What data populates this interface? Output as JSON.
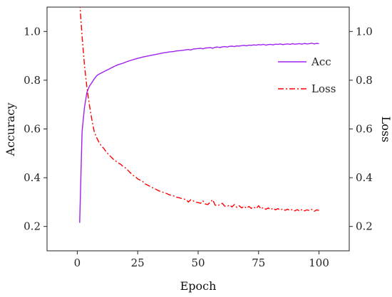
{
  "chart_data": {
    "type": "line",
    "xlabel": "Epoch",
    "ylabel_left": "Accuracy",
    "ylabel_right": "Loss",
    "xlim": [
      -12.5,
      112.5
    ],
    "ylim_left": [
      0.1,
      1.1
    ],
    "ylim_right": [
      0.1,
      1.1
    ],
    "xticks": [
      0,
      25,
      50,
      75,
      100
    ],
    "yticks_left": [
      0.2,
      0.4,
      0.6,
      0.8,
      1.0
    ],
    "yticks_right": [
      0.2,
      0.4,
      0.6,
      0.8,
      1.0
    ],
    "grid": false,
    "legend_position": "top-right",
    "series": [
      {
        "name": "Acc",
        "axis": "left",
        "color": "#a020f0",
        "style": "solid",
        "x": [
          1,
          2,
          3,
          4,
          5,
          6,
          7,
          8,
          9,
          10,
          11,
          12,
          13,
          14,
          15,
          16,
          17,
          18,
          19,
          20,
          21,
          22,
          23,
          24,
          25,
          26,
          27,
          28,
          29,
          30,
          31,
          32,
          33,
          34,
          35,
          36,
          37,
          38,
          39,
          40,
          41,
          42,
          43,
          44,
          45,
          46,
          47,
          48,
          49,
          50,
          51,
          52,
          53,
          54,
          55,
          56,
          57,
          58,
          59,
          60,
          61,
          62,
          63,
          64,
          65,
          66,
          67,
          68,
          69,
          70,
          71,
          72,
          73,
          74,
          75,
          76,
          77,
          78,
          79,
          80,
          81,
          82,
          83,
          84,
          85,
          86,
          87,
          88,
          89,
          90,
          91,
          92,
          93,
          94,
          95,
          96,
          97,
          98,
          99,
          100
        ],
        "y": [
          0.215,
          0.59,
          0.69,
          0.75,
          0.775,
          0.79,
          0.805,
          0.818,
          0.825,
          0.83,
          0.835,
          0.84,
          0.845,
          0.85,
          0.855,
          0.86,
          0.864,
          0.867,
          0.87,
          0.874,
          0.878,
          0.881,
          0.884,
          0.887,
          0.89,
          0.892,
          0.895,
          0.897,
          0.899,
          0.901,
          0.903,
          0.905,
          0.907,
          0.909,
          0.911,
          0.913,
          0.914,
          0.916,
          0.917,
          0.918,
          0.92,
          0.921,
          0.922,
          0.923,
          0.925,
          0.926,
          0.924,
          0.928,
          0.929,
          0.93,
          0.931,
          0.929,
          0.932,
          0.933,
          0.934,
          0.931,
          0.935,
          0.936,
          0.934,
          0.937,
          0.938,
          0.936,
          0.939,
          0.94,
          0.938,
          0.941,
          0.94,
          0.942,
          0.943,
          0.941,
          0.944,
          0.943,
          0.945,
          0.944,
          0.946,
          0.945,
          0.947,
          0.944,
          0.946,
          0.947,
          0.945,
          0.948,
          0.947,
          0.949,
          0.946,
          0.948,
          0.949,
          0.947,
          0.95,
          0.948,
          0.949,
          0.95,
          0.948,
          0.951,
          0.949,
          0.95,
          0.952,
          0.949,
          0.951,
          0.95
        ]
      },
      {
        "name": "Loss",
        "axis": "right",
        "color": "#ff0000",
        "style": "dashdot",
        "x": [
          1,
          2,
          3,
          4,
          5,
          6,
          7,
          8,
          9,
          10,
          11,
          12,
          13,
          14,
          15,
          16,
          17,
          18,
          19,
          20,
          21,
          22,
          23,
          24,
          25,
          26,
          27,
          28,
          29,
          30,
          31,
          32,
          33,
          34,
          35,
          36,
          37,
          38,
          39,
          40,
          41,
          42,
          43,
          44,
          45,
          46,
          47,
          48,
          49,
          50,
          51,
          52,
          53,
          54,
          55,
          56,
          57,
          58,
          59,
          60,
          61,
          62,
          63,
          64,
          65,
          66,
          67,
          68,
          69,
          70,
          71,
          72,
          73,
          74,
          75,
          76,
          77,
          78,
          79,
          80,
          81,
          82,
          83,
          84,
          85,
          86,
          87,
          88,
          89,
          90,
          91,
          92,
          93,
          94,
          95,
          96,
          97,
          98,
          99,
          100
        ],
        "y": [
          1.12,
          0.98,
          0.86,
          0.77,
          0.7,
          0.64,
          0.59,
          0.565,
          0.545,
          0.53,
          0.52,
          0.505,
          0.495,
          0.485,
          0.475,
          0.468,
          0.46,
          0.455,
          0.445,
          0.44,
          0.43,
          0.42,
          0.41,
          0.405,
          0.395,
          0.39,
          0.385,
          0.375,
          0.37,
          0.365,
          0.36,
          0.355,
          0.35,
          0.345,
          0.342,
          0.338,
          0.335,
          0.33,
          0.328,
          0.325,
          0.32,
          0.318,
          0.315,
          0.313,
          0.31,
          0.3,
          0.31,
          0.305,
          0.3,
          0.298,
          0.295,
          0.305,
          0.292,
          0.29,
          0.3,
          0.31,
          0.288,
          0.285,
          0.29,
          0.295,
          0.283,
          0.282,
          0.288,
          0.28,
          0.29,
          0.278,
          0.285,
          0.276,
          0.283,
          0.275,
          0.282,
          0.274,
          0.28,
          0.273,
          0.285,
          0.272,
          0.278,
          0.27,
          0.276,
          0.269,
          0.275,
          0.268,
          0.273,
          0.267,
          0.272,
          0.266,
          0.271,
          0.265,
          0.27,
          0.264,
          0.269,
          0.263,
          0.27,
          0.264,
          0.268,
          0.265,
          0.27,
          0.262,
          0.268,
          0.266
        ]
      }
    ]
  }
}
